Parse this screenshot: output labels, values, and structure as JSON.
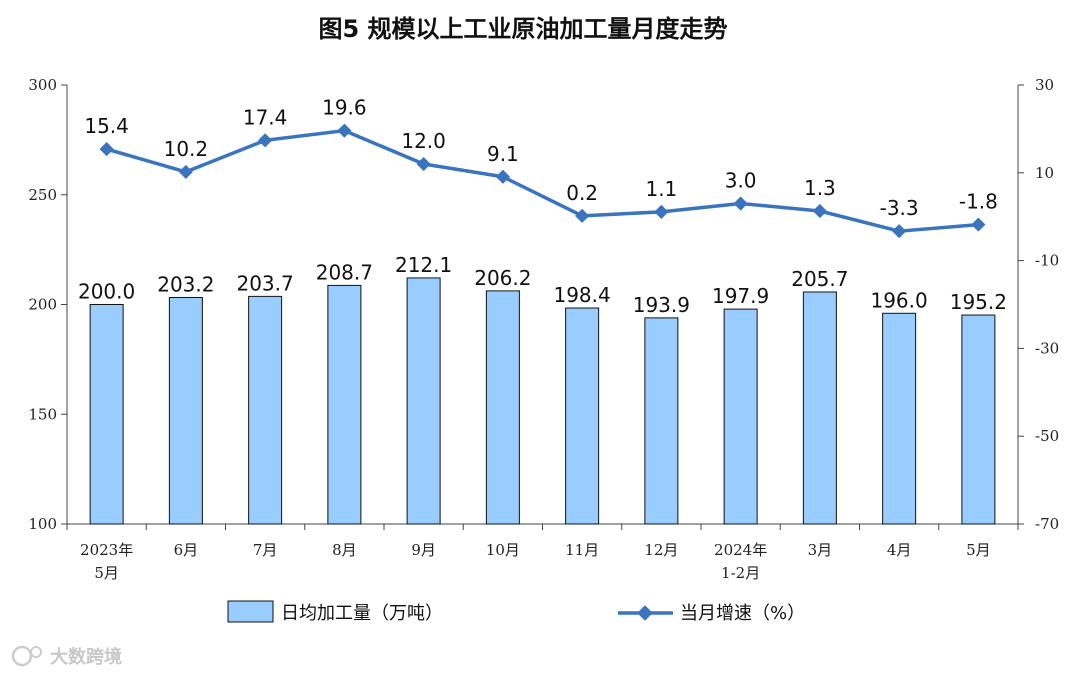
{
  "chart_data": {
    "type": "bar+line",
    "title": "图5  规模以上工业原油加工量月度走势",
    "categories": [
      [
        "2023年",
        "5月"
      ],
      [
        "6月"
      ],
      [
        "7月"
      ],
      [
        "8月"
      ],
      [
        "9月"
      ],
      [
        "10月"
      ],
      [
        "11月"
      ],
      [
        "12月"
      ],
      [
        "2024年",
        "1-2月"
      ],
      [
        "3月"
      ],
      [
        "4月"
      ],
      [
        "5月"
      ]
    ],
    "series": [
      {
        "name": "日均加工量（万吨）",
        "type": "bar",
        "axis": "left",
        "color": "#99ccff",
        "values": [
          200.0,
          203.2,
          203.7,
          208.7,
          212.1,
          206.2,
          198.4,
          193.9,
          197.9,
          205.7,
          196.0,
          195.2
        ],
        "labels": [
          "200.0",
          "203.2",
          "203.7",
          "208.7",
          "212.1",
          "206.2",
          "198.4",
          "193.9",
          "197.9",
          "205.7",
          "196.0",
          "195.2"
        ]
      },
      {
        "name": "当月增速（%）",
        "type": "line",
        "axis": "right",
        "color": "#3a74bf",
        "values": [
          15.4,
          10.2,
          17.4,
          19.6,
          12.0,
          9.1,
          0.2,
          1.1,
          3.0,
          1.3,
          -3.3,
          -1.8
        ],
        "labels": [
          "15.4",
          "10.2",
          "17.4",
          "19.6",
          "12.0",
          "9.1",
          "0.2",
          "1.1",
          "3.0",
          "1.3",
          "-3.3",
          "-1.8"
        ]
      }
    ],
    "y_left": {
      "min": 100,
      "max": 300,
      "ticks": [
        "100",
        "150",
        "200",
        "250",
        "300"
      ],
      "tick_values": [
        100,
        150,
        200,
        250,
        300
      ]
    },
    "y_right": {
      "min": -70,
      "max": 30,
      "ticks": [
        "-70",
        "-50",
        "-30",
        "-10",
        "10",
        "30"
      ],
      "tick_values": [
        -70,
        -50,
        -30,
        -10,
        10,
        30
      ]
    },
    "grid": false,
    "legend_position": "bottom"
  },
  "watermark": "大数跨境"
}
